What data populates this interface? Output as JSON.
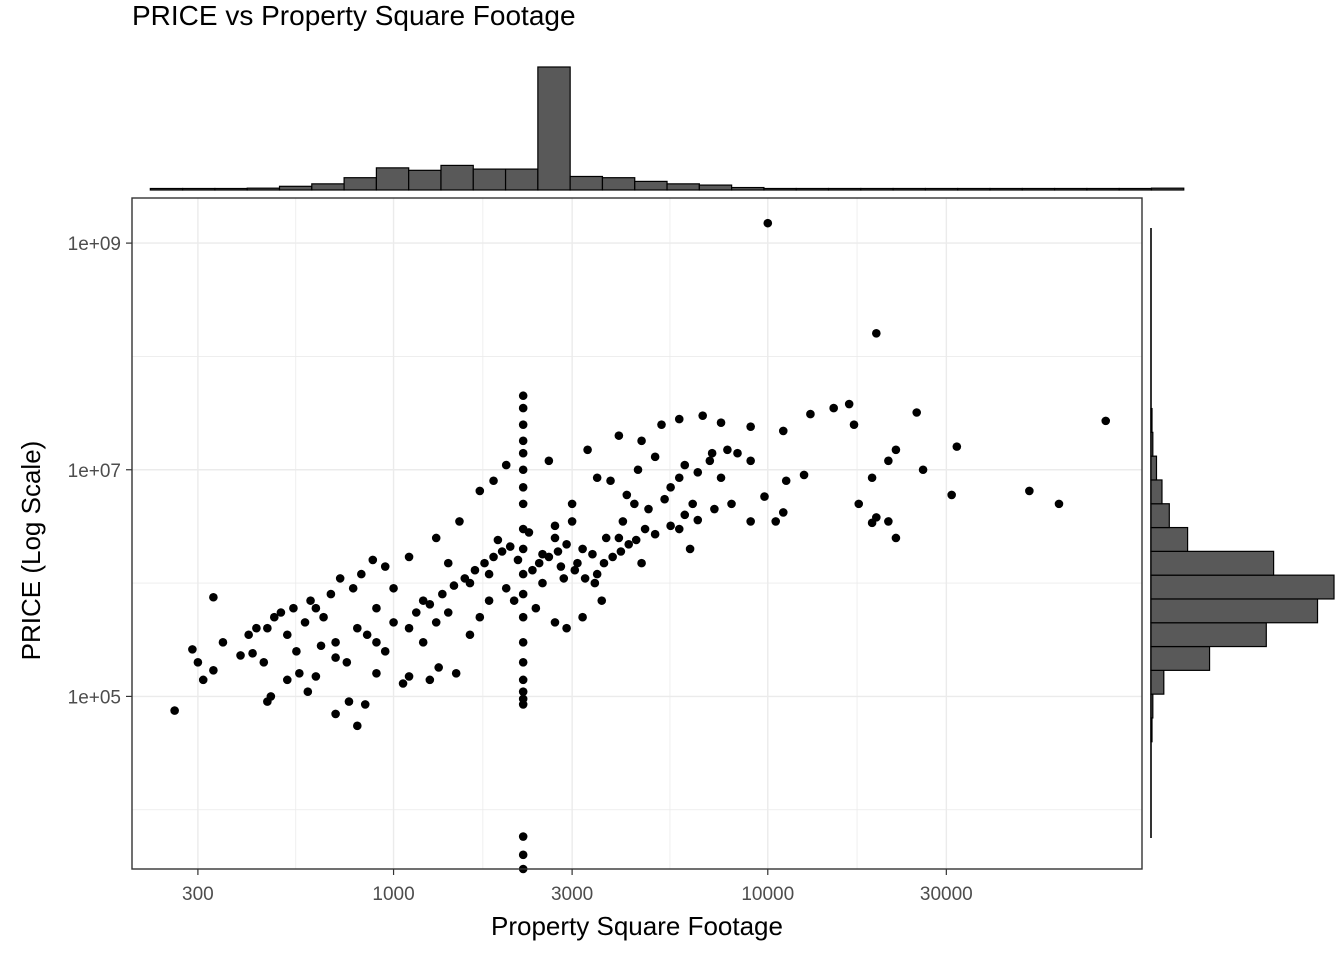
{
  "chart_data": {
    "type": "scatter",
    "title": "PRICE vs Property Square Footage",
    "xlabel": "Property Square Footage",
    "ylabel": "PRICE (Log Scale)",
    "x_scale": "log10",
    "y_scale": "log10",
    "xlim": [
      200,
      100000
    ],
    "ylim": [
      3000,
      2500000000
    ],
    "x_ticks": [
      300,
      1000,
      3000,
      10000,
      30000
    ],
    "x_tick_labels": [
      "300",
      "1000",
      "3000",
      "10000",
      "30000"
    ],
    "y_ticks": [
      100000,
      10000000,
      1000000000
    ],
    "y_tick_labels": [
      "1e+05",
      "1e+07",
      "1e+09"
    ],
    "grid": true,
    "legend": "none",
    "colors": {
      "points": "#000000",
      "bars": "#595959",
      "bar_edge": "#000000",
      "grid": "#ebebeb",
      "panel_border": "#333333"
    },
    "marginal_x_histogram": {
      "bins_log10_sqft_start": 2.35,
      "bin_width_log10": 0.0863,
      "relative_counts": [
        0.01,
        0.01,
        0.01,
        0.015,
        0.03,
        0.05,
        0.1,
        0.18,
        0.16,
        0.2,
        0.17,
        0.17,
        1.0,
        0.11,
        0.1,
        0.07,
        0.05,
        0.04,
        0.02,
        0.012,
        0.01,
        0.005,
        0.005,
        0.005,
        0.004,
        0.003,
        0.003,
        0.004,
        0.01,
        0.003,
        0.003,
        0.015
      ]
    },
    "marginal_y_histogram": {
      "bins_log10_price_start": 4.6,
      "bin_width_log10": 0.21,
      "relative_counts": [
        0.005,
        0.01,
        0.07,
        0.32,
        0.63,
        0.91,
        1.0,
        0.67,
        0.2,
        0.1,
        0.06,
        0.03,
        0.01,
        0.005
      ]
    },
    "series": [
      {
        "points": [
          [
            10000,
            1500000000
          ],
          [
            19500,
            160000000
          ],
          [
            16500,
            38000000
          ],
          [
            25000,
            32000000
          ],
          [
            15000,
            35000000
          ],
          [
            13000,
            31000000
          ],
          [
            17000,
            25000000
          ],
          [
            7500,
            26000000
          ],
          [
            9000,
            24000000
          ],
          [
            11000,
            22000000
          ],
          [
            80000,
            27000000
          ],
          [
            22000,
            15000000
          ],
          [
            32000,
            16000000
          ],
          [
            26000,
            10000000
          ],
          [
            31000,
            6000000
          ],
          [
            21000,
            12000000
          ],
          [
            50000,
            6500000
          ],
          [
            60000,
            5000000
          ],
          [
            19000,
            8500000
          ],
          [
            12500,
            9000000
          ],
          [
            17500,
            5000000
          ],
          [
            19500,
            3800000
          ],
          [
            21000,
            3500000
          ],
          [
            22000,
            2500000
          ],
          [
            19000,
            3400000
          ],
          [
            9000,
            3500000
          ],
          [
            10500,
            3500000
          ],
          [
            11000,
            4200000
          ],
          [
            8000,
            5000000
          ],
          [
            9800,
            5800000
          ],
          [
            7500,
            8500000
          ],
          [
            11200,
            8000000
          ],
          [
            260,
            75000
          ],
          [
            300,
            200000
          ],
          [
            310,
            140000
          ],
          [
            290,
            260000
          ],
          [
            330,
            170000
          ],
          [
            350,
            300000
          ],
          [
            330,
            750000
          ],
          [
            390,
            230000
          ],
          [
            420,
            240000
          ],
          [
            450,
            200000
          ],
          [
            460,
            400000
          ],
          [
            470,
            100000
          ],
          [
            460,
            90000
          ],
          [
            520,
            140000
          ],
          [
            560,
            160000
          ],
          [
            590,
            110000
          ],
          [
            620,
            150000
          ],
          [
            700,
            70000
          ],
          [
            760,
            90000
          ],
          [
            800,
            55000
          ],
          [
            840,
            85000
          ],
          [
            900,
            160000
          ],
          [
            1060,
            130000
          ],
          [
            1100,
            150000
          ],
          [
            1250,
            140000
          ],
          [
            1320,
            180000
          ],
          [
            1470,
            160000
          ],
          [
            2220,
            3000
          ],
          [
            2220,
            4000
          ],
          [
            2220,
            5800
          ],
          [
            2220,
            85000
          ],
          [
            2220,
            95000
          ],
          [
            2220,
            110000
          ],
          [
            2220,
            140000
          ],
          [
            2220,
            200000
          ],
          [
            2220,
            300000
          ],
          [
            2220,
            500000
          ],
          [
            2220,
            800000
          ],
          [
            2220,
            1200000
          ],
          [
            2220,
            2000000
          ],
          [
            2220,
            3000000
          ],
          [
            2220,
            5000000
          ],
          [
            2220,
            7000000
          ],
          [
            2220,
            10000000
          ],
          [
            2220,
            14000000
          ],
          [
            2220,
            18000000
          ],
          [
            2220,
            25000000
          ],
          [
            2220,
            35000000
          ],
          [
            2220,
            45000000
          ],
          [
            2000,
            11000000
          ],
          [
            1850,
            8000000
          ],
          [
            1700,
            6500000
          ],
          [
            2600,
            12000000
          ],
          [
            3300,
            15000000
          ],
          [
            4000,
            20000000
          ],
          [
            4600,
            18000000
          ],
          [
            5200,
            25000000
          ],
          [
            5800,
            28000000
          ],
          [
            6700,
            30000000
          ],
          [
            9000,
            12000000
          ],
          [
            4500,
            10000000
          ],
          [
            5000,
            13000000
          ],
          [
            6000,
            11000000
          ],
          [
            7000,
            12000000
          ],
          [
            3800,
            8000000
          ],
          [
            4200,
            6000000
          ],
          [
            5500,
            7000000
          ],
          [
            6300,
            5000000
          ],
          [
            7200,
            4500000
          ],
          [
            5800,
            3000000
          ],
          [
            6200,
            2000000
          ],
          [
            4000,
            2500000
          ],
          [
            3000,
            3500000
          ],
          [
            3200,
            2000000
          ],
          [
            2800,
            1400000
          ],
          [
            2500,
            1000000
          ],
          [
            3500,
            1200000
          ],
          [
            4600,
            1500000
          ],
          [
            3600,
            700000
          ],
          [
            3200,
            500000
          ],
          [
            2900,
            400000
          ],
          [
            2400,
            600000
          ],
          [
            2700,
            450000
          ],
          [
            1800,
            700000
          ],
          [
            1600,
            1000000
          ],
          [
            1400,
            1500000
          ],
          [
            1300,
            2500000
          ],
          [
            1500,
            3500000
          ],
          [
            1200,
            700000
          ],
          [
            1000,
            900000
          ],
          [
            900,
            600000
          ],
          [
            800,
            400000
          ],
          [
            700,
            300000
          ],
          [
            650,
            500000
          ],
          [
            600,
            700000
          ],
          [
            550,
            250000
          ],
          [
            750,
            200000
          ],
          [
            850,
            350000
          ],
          [
            950,
            250000
          ],
          [
            1100,
            400000
          ],
          [
            1200,
            300000
          ],
          [
            1300,
            450000
          ],
          [
            1400,
            550000
          ],
          [
            1600,
            350000
          ],
          [
            1700,
            500000
          ],
          [
            1800,
            1200000
          ],
          [
            2000,
            900000
          ],
          [
            2100,
            700000
          ],
          [
            2500,
            1800000
          ],
          [
            2700,
            2500000
          ],
          [
            2900,
            2200000
          ],
          [
            3100,
            1500000
          ],
          [
            3400,
            1800000
          ],
          [
            3700,
            2500000
          ],
          [
            4100,
            3500000
          ],
          [
            4800,
            4500000
          ],
          [
            5300,
            5500000
          ],
          [
            5800,
            8500000
          ],
          [
            6500,
            9500000
          ],
          [
            7100,
            14000000
          ],
          [
            7800,
            15000000
          ],
          [
            8300,
            14000000
          ],
          [
            3000,
            5000000
          ],
          [
            3500,
            8500000
          ],
          [
            4400,
            5000000
          ],
          [
            2700,
            3200000
          ],
          [
            2300,
            2800000
          ],
          [
            1900,
            2400000
          ],
          [
            1100,
            1700000
          ],
          [
            950,
            1400000
          ],
          [
            880,
            1600000
          ],
          [
            820,
            1200000
          ],
          [
            780,
            900000
          ],
          [
            720,
            1100000
          ],
          [
            680,
            800000
          ],
          [
            620,
            600000
          ],
          [
            580,
            450000
          ],
          [
            540,
            600000
          ],
          [
            500,
            550000
          ],
          [
            480,
            500000
          ],
          [
            430,
            400000
          ],
          [
            410,
            350000
          ],
          [
            520,
            350000
          ],
          [
            640,
            280000
          ],
          [
            700,
            220000
          ],
          [
            900,
            300000
          ],
          [
            1000,
            450000
          ],
          [
            1150,
            550000
          ],
          [
            1250,
            650000
          ],
          [
            1350,
            800000
          ],
          [
            1450,
            950000
          ],
          [
            1550,
            1100000
          ],
          [
            1650,
            1300000
          ],
          [
            1750,
            1500000
          ],
          [
            1850,
            1700000
          ],
          [
            1950,
            1900000
          ],
          [
            2050,
            2100000
          ],
          [
            2150,
            1600000
          ],
          [
            2350,
            1300000
          ],
          [
            2450,
            1500000
          ],
          [
            2600,
            1700000
          ],
          [
            2750,
            1900000
          ],
          [
            2850,
            1100000
          ],
          [
            3050,
            1300000
          ],
          [
            3250,
            1100000
          ],
          [
            3450,
            1000000
          ],
          [
            3650,
            1500000
          ],
          [
            3850,
            1700000
          ],
          [
            4050,
            1900000
          ],
          [
            4250,
            2200000
          ],
          [
            4450,
            2400000
          ],
          [
            4700,
            3000000
          ],
          [
            5000,
            2700000
          ],
          [
            5500,
            3200000
          ],
          [
            6000,
            4000000
          ],
          [
            6500,
            3600000
          ]
        ]
      }
    ]
  }
}
